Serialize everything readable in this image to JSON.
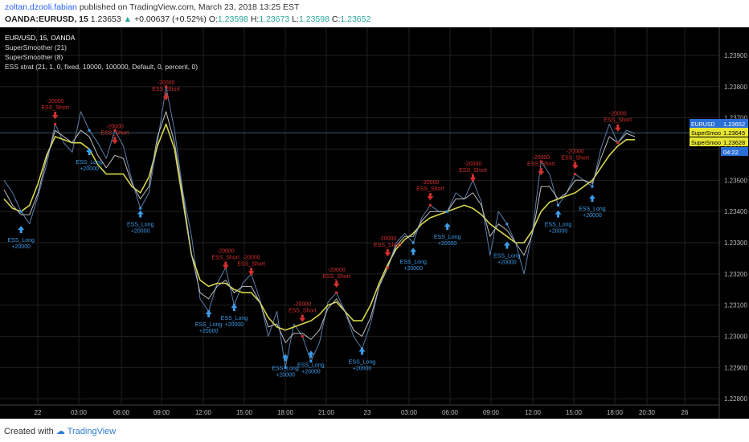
{
  "header": {
    "user": "zoltan.dzooli.fabian",
    "published": "published on TradingView.com, March 23, 2018 13:25 EST",
    "symbol": "OANDA:EURUSD, 15",
    "last": "1.23653",
    "change": "+0.00637 (+0.52%)",
    "o_label": "O:",
    "o": "1.23598",
    "h_label": "H:",
    "h": "1.23673",
    "l_label": "L:",
    "l": "1.23598",
    "c_label": "C:",
    "c": "1.23652"
  },
  "legend": [
    "EUR/USD, 15, OANDA",
    "SuperSmoother (21)",
    "SuperSmoother (8)",
    "ESS strat (21, 1, 0, fixed, 10000, 100000, Default, 0, percent, 0)"
  ],
  "footer": {
    "created": "Created with",
    "brand": "TradingView"
  },
  "colors": {
    "background": "#000000",
    "grid": "#1f1f1f",
    "price": "#5a7fa8",
    "ss21": "#d6d64a",
    "ss8": "#bfbfbf",
    "long": "#3d9be9",
    "short": "#d32f2f",
    "marker": "#ffff00"
  },
  "chart_data": {
    "type": "line",
    "ylim": [
      1.2278,
      1.2399
    ],
    "y_ticks": [
      "1.22800",
      "1.22900",
      "1.23000",
      "1.23100",
      "1.23200",
      "1.23300",
      "1.23400",
      "1.23500",
      "1.23600",
      "1.23700",
      "1.23800",
      "1.23900"
    ],
    "x_ticks": [
      "22",
      "03:00",
      "06:00",
      "09:00",
      "12:00",
      "15:00",
      "18:00",
      "21:00",
      "23",
      "03:00",
      "06:00",
      "09:00",
      "12:00",
      "15:00",
      "18:00",
      "20:30",
      "26"
    ],
    "price_tags": [
      {
        "label": "EURUSD",
        "value": "1.23652"
      },
      {
        "label": "SuperSmoother",
        "value": "1.23645"
      },
      {
        "label": "SuperSmoother",
        "value": "1.23628"
      },
      {
        "label": "",
        "value": "04:22"
      }
    ],
    "series": [
      {
        "name": "EUR/USD",
        "values": [
          1.235,
          1.2346,
          1.234,
          1.2336,
          1.2345,
          1.2355,
          1.2368,
          1.2362,
          1.2359,
          1.2372,
          1.2366,
          1.2362,
          1.2357,
          1.2366,
          1.2361,
          1.235,
          1.2341,
          1.2346,
          1.2362,
          1.238,
          1.2366,
          1.2346,
          1.2332,
          1.2312,
          1.2308,
          1.2317,
          1.2322,
          1.231,
          1.2317,
          1.232,
          1.2312,
          1.23,
          1.2308,
          1.229,
          1.2304,
          1.23,
          1.2292,
          1.2298,
          1.2311,
          1.2314,
          1.2308,
          1.23,
          1.2296,
          1.2304,
          1.2316,
          1.2322,
          1.233,
          1.2333,
          1.233,
          1.2338,
          1.2342,
          1.234,
          1.234,
          1.2346,
          1.2344,
          1.235,
          1.2343,
          1.2326,
          1.234,
          1.2336,
          1.233,
          1.232,
          1.2334,
          1.2356,
          1.2352,
          1.2342,
          1.2346,
          1.2352,
          1.235,
          1.2348,
          1.236,
          1.2368,
          1.2362,
          1.2366,
          1.2365
        ]
      },
      {
        "name": "SuperSmoother (21)",
        "values": [
          1.2344,
          1.2341,
          1.234,
          1.2342,
          1.2349,
          1.2358,
          1.2364,
          1.2363,
          1.2362,
          1.2362,
          1.236,
          1.2355,
          1.2352,
          1.2352,
          1.2352,
          1.2348,
          1.2346,
          1.2351,
          1.2361,
          1.2368,
          1.236,
          1.2343,
          1.2326,
          1.2318,
          1.2316,
          1.2317,
          1.2317,
          1.2315,
          1.2314,
          1.2314,
          1.2311,
          1.2306,
          1.2303,
          1.2302,
          1.2303,
          1.2304,
          1.2305,
          1.2307,
          1.231,
          1.2311,
          1.2308,
          1.2305,
          1.2305,
          1.231,
          1.2317,
          1.2323,
          1.2328,
          1.2331,
          1.2333,
          1.2336,
          1.2338,
          1.2339,
          1.234,
          1.2341,
          1.2342,
          1.2341,
          1.2339,
          1.2336,
          1.2334,
          1.2332,
          1.233,
          1.233,
          1.2334,
          1.234,
          1.2343,
          1.2344,
          1.2345,
          1.2346,
          1.2348,
          1.235,
          1.2354,
          1.2358,
          1.2361,
          1.2363,
          1.2363
        ]
      },
      {
        "name": "SuperSmoother (8)",
        "values": [
          1.2347,
          1.2342,
          1.2339,
          1.2339,
          1.2346,
          1.2357,
          1.2366,
          1.2364,
          1.2362,
          1.2366,
          1.2364,
          1.2358,
          1.2354,
          1.2358,
          1.2357,
          1.2349,
          1.2344,
          1.2348,
          1.2364,
          1.2372,
          1.2362,
          1.2345,
          1.2326,
          1.2314,
          1.2312,
          1.2316,
          1.2318,
          1.2314,
          1.2316,
          1.2316,
          1.2311,
          1.2303,
          1.2304,
          1.2298,
          1.2301,
          1.2301,
          1.2299,
          1.2302,
          1.2309,
          1.2312,
          1.2308,
          1.2302,
          1.23,
          1.2306,
          1.2316,
          1.2322,
          1.2329,
          1.2332,
          1.2332,
          1.2337,
          1.234,
          1.234,
          1.234,
          1.2344,
          1.2344,
          1.2346,
          1.2342,
          1.2332,
          1.2336,
          1.2334,
          1.233,
          1.2326,
          1.2333,
          1.2348,
          1.2348,
          1.2344,
          1.2346,
          1.235,
          1.235,
          1.2349,
          1.2357,
          1.2364,
          1.2362,
          1.2365,
          1.2364
        ]
      }
    ],
    "signals": [
      {
        "type": "long",
        "i": 2,
        "text": "ESS_Long"
      },
      {
        "type": "short",
        "i": 6,
        "text": "ESS_Short"
      },
      {
        "type": "long",
        "i": 10,
        "text": "ESS_Long"
      },
      {
        "type": "short",
        "i": 13,
        "text": "ESS_Short"
      },
      {
        "type": "long",
        "i": 16,
        "text": "ESS_Long"
      },
      {
        "type": "short",
        "i": 19,
        "text": "ESS_Short"
      },
      {
        "type": "long",
        "i": 24,
        "text": "ESS_Long"
      },
      {
        "type": "short",
        "i": 26,
        "text": "ESS_Short"
      },
      {
        "type": "long",
        "i": 27,
        "text": "ESS_Long"
      },
      {
        "type": "short",
        "i": 29,
        "text": "ESS_Short"
      },
      {
        "type": "long",
        "i": 33,
        "text": "ESS_Long"
      },
      {
        "type": "short",
        "i": 35,
        "text": "ESS_Short"
      },
      {
        "type": "long",
        "i": 36,
        "text": "ESS_Long"
      },
      {
        "type": "short",
        "i": 39,
        "text": "ESS_Short"
      },
      {
        "type": "long",
        "i": 42,
        "text": "ESS_Long"
      },
      {
        "type": "short",
        "i": 45,
        "text": "ESS_Short"
      },
      {
        "type": "long",
        "i": 48,
        "text": "ESS_Long"
      },
      {
        "type": "short",
        "i": 50,
        "text": "ESS_Short"
      },
      {
        "type": "long",
        "i": 52,
        "text": "ESS_Long"
      },
      {
        "type": "short",
        "i": 55,
        "text": "ESS_Short"
      },
      {
        "type": "long",
        "i": 59,
        "text": "ESS_Long"
      },
      {
        "type": "short",
        "i": 63,
        "text": "ESS_Short"
      },
      {
        "type": "long",
        "i": 65,
        "text": "ESS_Long"
      },
      {
        "type": "short",
        "i": 67,
        "text": "ESS_Short"
      },
      {
        "type": "long",
        "i": 69,
        "text": "ESS_Long"
      },
      {
        "type": "short",
        "i": 72,
        "text": "ESS_Short"
      }
    ],
    "signal_amounts": {
      "long": "+20000",
      "short": "-20000"
    }
  }
}
